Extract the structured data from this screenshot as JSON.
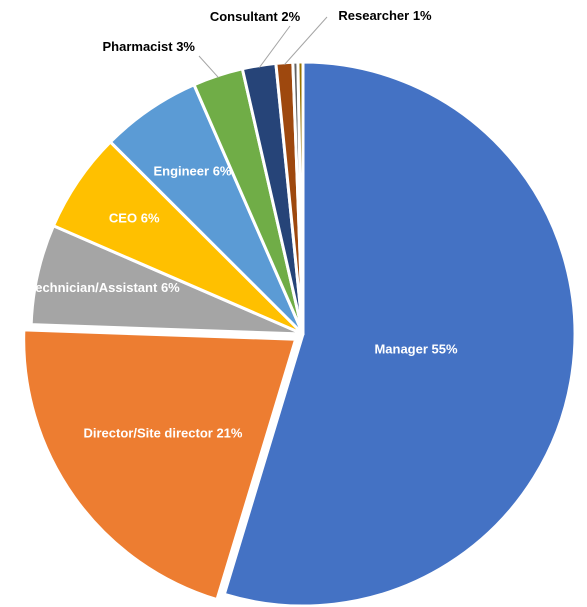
{
  "chart_data": {
    "type": "pie",
    "categories": [
      "Manager",
      "Director/Site director",
      "Technician/Assistant",
      "CEO",
      "Engineer",
      "Pharmacist",
      "Consultant",
      "Researcher",
      null,
      null
    ],
    "values": [
      55,
      21,
      6,
      6,
      6,
      3,
      2,
      1,
      0.3,
      0.3
    ],
    "value_labels": [
      "55%",
      "21%",
      "6%",
      "6%",
      "6%",
      "3%",
      "2%",
      "1%",
      null,
      null
    ],
    "colors": [
      "#4472c4",
      "#ed7d31",
      "#a5a5a5",
      "#ffc000",
      "#5b9bd5",
      "#70ad47",
      "#264478",
      "#9e480e",
      "#636363",
      "#997300"
    ]
  }
}
